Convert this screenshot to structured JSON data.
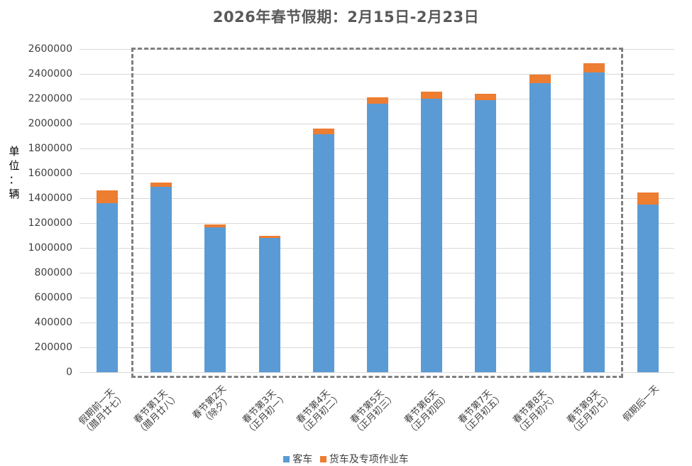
{
  "title": "2026年春节假期：2月15日-2月23日",
  "ylabel_chars": [
    "单",
    "位",
    "：",
    "辆"
  ],
  "legend": [
    {
      "label": "客车",
      "color": "#5b9bd5"
    },
    {
      "label": "货车及专项作业车",
      "color": "#ed7d31"
    }
  ],
  "colors": {
    "passenger": "#5b9bd5",
    "freight": "#ed7d31",
    "dashbox": "#7f7f7f",
    "grid": "#d9d9d9",
    "title": "#595959"
  },
  "y_ticks": [
    "0",
    "200000",
    "400000",
    "600000",
    "800000",
    "1000000",
    "1200000",
    "1400000",
    "1600000",
    "1800000",
    "2000000",
    "2200000",
    "2400000",
    "2600000"
  ],
  "categories": [
    {
      "line1": "假期前一天",
      "line2": "（腊月廿七）"
    },
    {
      "line1": "春节第1天",
      "line2": "（腊月廿八）"
    },
    {
      "line1": "春节第2天",
      "line2": "（除夕）"
    },
    {
      "line1": "春节第3天",
      "line2": "（正月初一）"
    },
    {
      "line1": "春节第4天",
      "line2": "（正月初二）"
    },
    {
      "line1": "春节第5天",
      "line2": "（正月初三）"
    },
    {
      "line1": "春节第6天",
      "line2": "（正月初四）"
    },
    {
      "line1": "春节第7天",
      "line2": "（正月初五）"
    },
    {
      "line1": "春节第8天",
      "line2": "（正月初六）"
    },
    {
      "line1": "春节第9天",
      "line2": "（正月初七）"
    },
    {
      "line1": "假期后一天",
      "line2": ""
    }
  ],
  "chart_data": {
    "type": "bar",
    "stacked": true,
    "title": "2026年春节假期：2月15日-2月23日",
    "xlabel": "",
    "ylabel": "单位：辆",
    "ylim": [
      0,
      2600000
    ],
    "y_tick_step": 200000,
    "grid": true,
    "legend_position": "bottom",
    "annotation": "dashed rectangle surrounding 春节第1天 through 春节第9天",
    "categories": [
      "假期前一天（腊月廿七）",
      "春节第1天（腊月廿八）",
      "春节第2天（除夕）",
      "春节第3天（正月初一）",
      "春节第4天（正月初二）",
      "春节第5天（正月初三）",
      "春节第6天（正月初四）",
      "春节第7天（正月初五）",
      "春节第8天（正月初六）",
      "春节第9天（正月初七）",
      "假期后一天"
    ],
    "series": [
      {
        "name": "客车",
        "color": "#5b9bd5",
        "values": [
          1360000,
          1490000,
          1165000,
          1080000,
          1915000,
          2160000,
          2200000,
          2190000,
          2325000,
          2410000,
          1350000
        ]
      },
      {
        "name": "货车及专项作业车",
        "color": "#ed7d31",
        "values": [
          103000,
          36000,
          24000,
          17000,
          45000,
          51000,
          57000,
          50000,
          69000,
          76000,
          96000
        ]
      }
    ]
  }
}
